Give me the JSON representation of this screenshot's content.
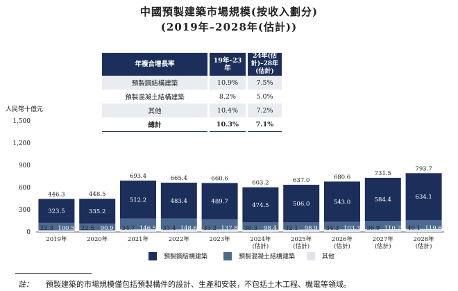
{
  "title_line1": "中國預製建築市場規模(按收入劃分)",
  "title_line2": "(2019年–2028年(估計))",
  "cagr_table": {
    "header": [
      "年複合增長率",
      "19年–23年",
      "24年(估計)–28年(估計)"
    ],
    "rows": [
      [
        "預製鋼結構建築",
        "10.9%",
        "7.5%"
      ],
      [
        "預製混凝土結構建築",
        "8.2%",
        "5.0%"
      ],
      [
        "其他",
        "10.4%",
        "7.2%"
      ],
      [
        "總計",
        "10.3%",
        "7.1%"
      ]
    ]
  },
  "footnote": {
    "label": "註：",
    "text": "預製建築的市場規模僅包括預製構件的設計、生產和安裝，不包括土木工程、機電等領域。"
  },
  "colors": {
    "steel": "#1c2f5a",
    "concrete": "#4c6a8f",
    "other": "#dfe4ea",
    "header_bg": "#1c2f5a"
  },
  "chart_data": {
    "type": "bar",
    "stacked": true,
    "ylabel": "人民幣十億元",
    "ylim": [
      0,
      1500
    ],
    "yticks": [
      "0",
      "300",
      "600",
      "900",
      "1,200",
      "1,500"
    ],
    "categories": [
      [
        "2019年"
      ],
      [
        "2020年"
      ],
      [
        "2021年"
      ],
      [
        "2022年"
      ],
      [
        "2023年"
      ],
      [
        "2024年",
        "(估計)"
      ],
      [
        "2025年",
        "(估計)"
      ],
      [
        "2026年",
        "(估計)"
      ],
      [
        "2027年",
        "(估計)"
      ],
      [
        "2028年",
        "(估計)"
      ]
    ],
    "series": [
      {
        "name": "其他",
        "values": [
          22.3,
          22.5,
          34.7,
          33.4,
          33.2,
          30.3,
          32.1,
          34.3,
          36.9,
          40.1
        ]
      },
      {
        "name": "預製混凝土結構建築",
        "values": [
          100.5,
          90.9,
          146.5,
          148.6,
          137.8,
          98.4,
          98.9,
          103.3,
          110.2,
          119.6
        ]
      },
      {
        "name": "預製鋼結構建築",
        "values": [
          323.5,
          335.2,
          512.2,
          483.4,
          489.7,
          474.5,
          506.0,
          543.0,
          584.4,
          634.1
        ]
      }
    ],
    "totals": [
      446.3,
      448.5,
      693.4,
      665.4,
      660.6,
      603.2,
      637.0,
      680.6,
      731.5,
      793.7
    ],
    "legend": [
      "預製鋼結構建築",
      "預製混凝土結構建築",
      "其他"
    ],
    "legend_position": "bottom"
  }
}
